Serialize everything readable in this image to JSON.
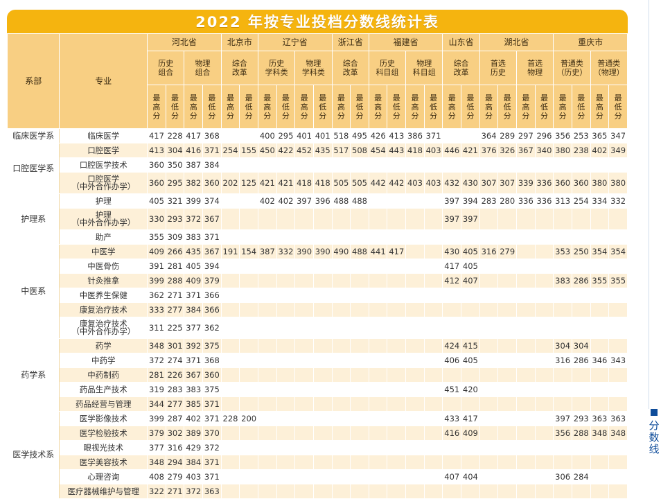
{
  "title": "2022 年按专业投档分数线统计表",
  "side_label": "分数线",
  "header": {
    "dept": "系部",
    "major": "专业",
    "max": "最高分",
    "min": "最低分",
    "provinces": [
      {
        "name": "河北省",
        "types": [
          "历史组合",
          "物理组合"
        ]
      },
      {
        "name": "北京市",
        "types": [
          "综合改革"
        ]
      },
      {
        "name": "辽宁省",
        "types": [
          "历史学科类",
          "物理学科类"
        ]
      },
      {
        "name": "浙江省",
        "types": [
          "综合改革"
        ]
      },
      {
        "name": "福建省",
        "types": [
          "历史科目组",
          "物理科目组"
        ]
      },
      {
        "name": "山东省",
        "types": [
          "综合改革"
        ]
      },
      {
        "name": "湖北省",
        "types": [
          "首选历史",
          "首选物理"
        ]
      },
      {
        "name": "重庆市",
        "types": [
          "普通类（历史）",
          "普通类（物理）"
        ]
      }
    ]
  },
  "departments": [
    {
      "name": "临床医学系",
      "rows": [
        {
          "major": "临床医学",
          "s": [
            "417",
            "228",
            "417",
            "368",
            "",
            "",
            "400",
            "295",
            "401",
            "401",
            "518",
            "495",
            "426",
            "413",
            "386",
            "371",
            "",
            "",
            "364",
            "289",
            "297",
            "296",
            "356",
            "253",
            "365",
            "347"
          ]
        }
      ]
    },
    {
      "name": "口腔医学系",
      "rows": [
        {
          "major": "口腔医学",
          "s": [
            "413",
            "304",
            "416",
            "371",
            "254",
            "155",
            "450",
            "422",
            "452",
            "435",
            "517",
            "508",
            "454",
            "443",
            "418",
            "403",
            "446",
            "421",
            "376",
            "326",
            "367",
            "340",
            "380",
            "238",
            "402",
            "349"
          ]
        },
        {
          "major": "口腔医学技术",
          "s": [
            "360",
            "350",
            "387",
            "384",
            "",
            "",
            "",
            "",
            "",
            "",
            "",
            "",
            "",
            "",
            "",
            "",
            "",
            "",
            "",
            "",
            "",
            "",
            "",
            "",
            "",
            ""
          ]
        },
        {
          "major": "口腔医学\n（中外合作办学）",
          "s": [
            "360",
            "295",
            "382",
            "360",
            "202",
            "125",
            "421",
            "421",
            "418",
            "418",
            "505",
            "505",
            "442",
            "442",
            "403",
            "403",
            "432",
            "430",
            "307",
            "307",
            "339",
            "336",
            "360",
            "360",
            "380",
            "380"
          ]
        }
      ]
    },
    {
      "name": "护理系",
      "rows": [
        {
          "major": "护理",
          "s": [
            "405",
            "321",
            "399",
            "374",
            "",
            "",
            "402",
            "402",
            "397",
            "396",
            "488",
            "488",
            "",
            "",
            "",
            "",
            "397",
            "394",
            "283",
            "280",
            "336",
            "336",
            "313",
            "254",
            "334",
            "332"
          ]
        },
        {
          "major": "护理\n（中外合作办学）",
          "s": [
            "330",
            "293",
            "372",
            "367",
            "",
            "",
            "",
            "",
            "",
            "",
            "",
            "",
            "",
            "",
            "",
            "",
            "397",
            "397",
            "",
            "",
            "",
            "",
            "",
            "",
            "",
            ""
          ]
        },
        {
          "major": "助产",
          "s": [
            "355",
            "309",
            "383",
            "371",
            "",
            "",
            "",
            "",
            "",
            "",
            "",
            "",
            "",
            "",
            "",
            "",
            "",
            "",
            "",
            "",
            "",
            "",
            "",
            "",
            "",
            ""
          ]
        }
      ]
    },
    {
      "name": "中医系",
      "rows": [
        {
          "major": "中医学",
          "s": [
            "409",
            "266",
            "435",
            "367",
            "191",
            "154",
            "387",
            "332",
            "390",
            "390",
            "490",
            "488",
            "441",
            "417",
            "",
            "",
            "430",
            "405",
            "316",
            "279",
            "",
            "",
            "353",
            "250",
            "354",
            "354"
          ]
        },
        {
          "major": "中医骨伤",
          "s": [
            "391",
            "281",
            "405",
            "394",
            "",
            "",
            "",
            "",
            "",
            "",
            "",
            "",
            "",
            "",
            "",
            "",
            "417",
            "405",
            "",
            "",
            "",
            "",
            "",
            "",
            "",
            ""
          ]
        },
        {
          "major": "针灸推拿",
          "s": [
            "399",
            "288",
            "409",
            "379",
            "",
            "",
            "",
            "",
            "",
            "",
            "",
            "",
            "",
            "",
            "",
            "",
            "412",
            "407",
            "",
            "",
            "",
            "",
            "383",
            "286",
            "355",
            "355"
          ]
        },
        {
          "major": "中医养生保健",
          "s": [
            "362",
            "271",
            "371",
            "366",
            "",
            "",
            "",
            "",
            "",
            "",
            "",
            "",
            "",
            "",
            "",
            "",
            "",
            "",
            "",
            "",
            "",
            "",
            "",
            "",
            "",
            ""
          ]
        },
        {
          "major": "康复治疗技术",
          "s": [
            "333",
            "277",
            "384",
            "366",
            "",
            "",
            "",
            "",
            "",
            "",
            "",
            "",
            "",
            "",
            "",
            "",
            "",
            "",
            "",
            "",
            "",
            "",
            "",
            "",
            "",
            ""
          ]
        },
        {
          "major": "康复治疗技术\n（中外合作办学）",
          "s": [
            "311",
            "225",
            "377",
            "362",
            "",
            "",
            "",
            "",
            "",
            "",
            "",
            "",
            "",
            "",
            "",
            "",
            "",
            "",
            "",
            "",
            "",
            "",
            "",
            "",
            "",
            ""
          ]
        }
      ]
    },
    {
      "name": "药学系",
      "rows": [
        {
          "major": "药学",
          "s": [
            "348",
            "301",
            "392",
            "375",
            "",
            "",
            "",
            "",
            "",
            "",
            "",
            "",
            "",
            "",
            "",
            "",
            "424",
            "415",
            "",
            "",
            "",
            "",
            "304",
            "304",
            "",
            ""
          ]
        },
        {
          "major": "中药学",
          "s": [
            "372",
            "274",
            "371",
            "368",
            "",
            "",
            "",
            "",
            "",
            "",
            "",
            "",
            "",
            "",
            "",
            "",
            "406",
            "405",
            "",
            "",
            "",
            "",
            "316",
            "286",
            "346",
            "343"
          ]
        },
        {
          "major": "中药制药",
          "s": [
            "281",
            "226",
            "367",
            "360",
            "",
            "",
            "",
            "",
            "",
            "",
            "",
            "",
            "",
            "",
            "",
            "",
            "",
            "",
            "",
            "",
            "",
            "",
            "",
            "",
            "",
            ""
          ]
        },
        {
          "major": "药品生产技术",
          "s": [
            "319",
            "283",
            "383",
            "375",
            "",
            "",
            "",
            "",
            "",
            "",
            "",
            "",
            "",
            "",
            "",
            "",
            "451",
            "420",
            "",
            "",
            "",
            "",
            "",
            "",
            "",
            ""
          ]
        },
        {
          "major": "药品经营与管理",
          "s": [
            "344",
            "277",
            "385",
            "371",
            "",
            "",
            "",
            "",
            "",
            "",
            "",
            "",
            "",
            "",
            "",
            "",
            "",
            "",
            "",
            "",
            "",
            "",
            "",
            "",
            "",
            ""
          ]
        }
      ]
    },
    {
      "name": "医学技术系",
      "rows": [
        {
          "major": "医学影像技术",
          "s": [
            "399",
            "287",
            "402",
            "371",
            "228",
            "200",
            "",
            "",
            "",
            "",
            "",
            "",
            "",
            "",
            "",
            "",
            "433",
            "417",
            "",
            "",
            "",
            "",
            "397",
            "293",
            "363",
            "363"
          ]
        },
        {
          "major": "医学检验技术",
          "s": [
            "379",
            "302",
            "389",
            "370",
            "",
            "",
            "",
            "",
            "",
            "",
            "",
            "",
            "",
            "",
            "",
            "",
            "416",
            "409",
            "",
            "",
            "",
            "",
            "356",
            "288",
            "348",
            "348"
          ]
        },
        {
          "major": "眼视光技术",
          "s": [
            "377",
            "316",
            "429",
            "372",
            "",
            "",
            "",
            "",
            "",
            "",
            "",
            "",
            "",
            "",
            "",
            "",
            "",
            "",
            "",
            "",
            "",
            "",
            "",
            "",
            "",
            ""
          ]
        },
        {
          "major": "医学美容技术",
          "s": [
            "348",
            "294",
            "384",
            "371",
            "",
            "",
            "",
            "",
            "",
            "",
            "",
            "",
            "",
            "",
            "",
            "",
            "",
            "",
            "",
            "",
            "",
            "",
            "",
            "",
            "",
            ""
          ]
        },
        {
          "major": "心理咨询",
          "s": [
            "408",
            "279",
            "403",
            "371",
            "",
            "",
            "",
            "",
            "",
            "",
            "",
            "",
            "",
            "",
            "",
            "",
            "407",
            "404",
            "",
            "",
            "",
            "",
            "306",
            "284",
            "",
            ""
          ]
        },
        {
          "major": "医疗器械维护与管理",
          "s": [
            "322",
            "271",
            "372",
            "363",
            "",
            "",
            "",
            "",
            "",
            "",
            "",
            "",
            "",
            "",
            "",
            "",
            "",
            "",
            "",
            "",
            "",
            "",
            "",
            "",
            "",
            ""
          ]
        }
      ]
    }
  ]
}
